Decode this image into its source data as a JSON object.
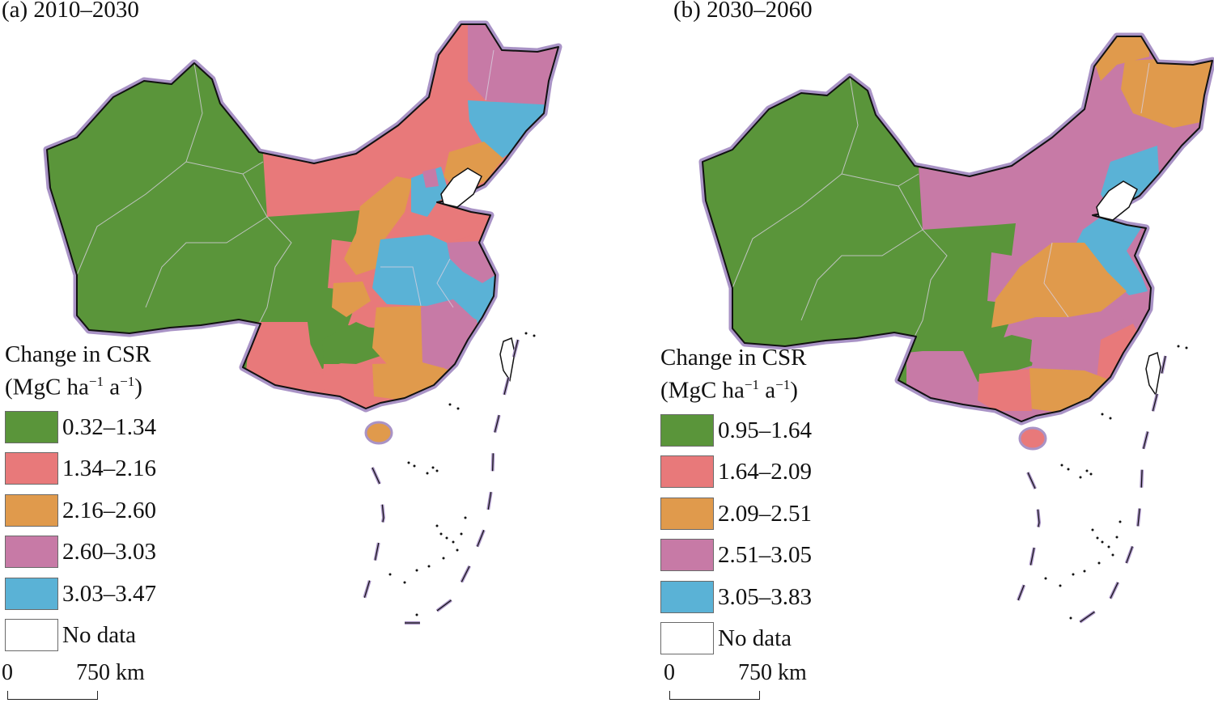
{
  "figure": {
    "panels": [
      {
        "id": "a",
        "title": "(a) 2010–2030",
        "legend": {
          "title_line1": "Change in CSR",
          "title_line2_prefix": "(MgC ha",
          "title_line2_sup1": "−1",
          "title_line2_mid": " a",
          "title_line2_sup2": "−1",
          "title_line2_suffix": ")",
          "classes": [
            {
              "label": "0.32–1.34",
              "color": "#5a953a"
            },
            {
              "label": "1.34–2.16",
              "color": "#e8797a"
            },
            {
              "label": "2.16–2.60",
              "color": "#e09a4c"
            },
            {
              "label": "2.60–3.03",
              "color": "#c77aa6"
            },
            {
              "label": "3.03–3.47",
              "color": "#5ab2d6"
            },
            {
              "label": "No data",
              "color": "#ffffff"
            }
          ]
        },
        "scale": {
          "zero": "0",
          "distance": "750 km"
        }
      },
      {
        "id": "b",
        "title": "(b) 2030–2060",
        "legend": {
          "title_line1": "Change in CSR",
          "title_line2_prefix": "(MgC ha",
          "title_line2_sup1": "−1",
          "title_line2_mid": " a",
          "title_line2_sup2": "−1",
          "title_line2_suffix": ")",
          "classes": [
            {
              "label": "0.95–1.64",
              "color": "#5a953a"
            },
            {
              "label": "1.64–2.09",
              "color": "#e8797a"
            },
            {
              "label": "2.09–2.51",
              "color": "#e09a4c"
            },
            {
              "label": "2.51–3.05",
              "color": "#c77aa6"
            },
            {
              "label": "3.05–3.83",
              "color": "#5ab2d6"
            },
            {
              "label": "No data",
              "color": "#ffffff"
            }
          ]
        },
        "scale": {
          "zero": "0",
          "distance": "750 km"
        }
      }
    ],
    "border_color": "#a993c6"
  }
}
